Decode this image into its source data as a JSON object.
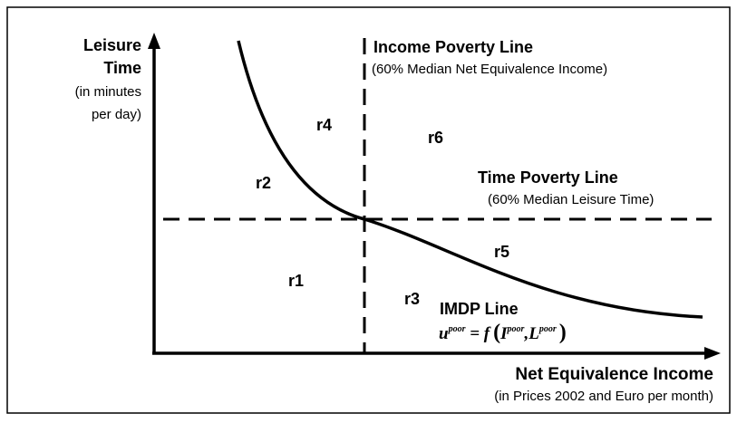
{
  "axes": {
    "y_label": {
      "title": [
        "Leisure",
        "Time"
      ],
      "unit": [
        "(in minutes",
        "per day)"
      ]
    },
    "x_label": {
      "title": "Net Equivalence Income",
      "unit": "(in Prices 2002 and Euro per month)"
    }
  },
  "lines": {
    "income_poverty": {
      "title": "Income Poverty Line",
      "subtitle": "(60% Median Net Equivalence Income)"
    },
    "time_poverty": {
      "title": "Time Poverty Line",
      "subtitle": "(60% Median Leisure Time)"
    },
    "imdp": {
      "title": "IMDP Line",
      "formula": {
        "lhs": "u",
        "lhs_sup": "poor",
        "eq": " = f",
        "open": "(",
        "arg1": "I",
        "arg1_sup": "poor",
        "comma": ",",
        "arg2": "L",
        "arg2_sup": "poor",
        "close": ")"
      }
    }
  },
  "regions": [
    "r1",
    "r2",
    "r3",
    "r4",
    "r5",
    "r6"
  ]
}
